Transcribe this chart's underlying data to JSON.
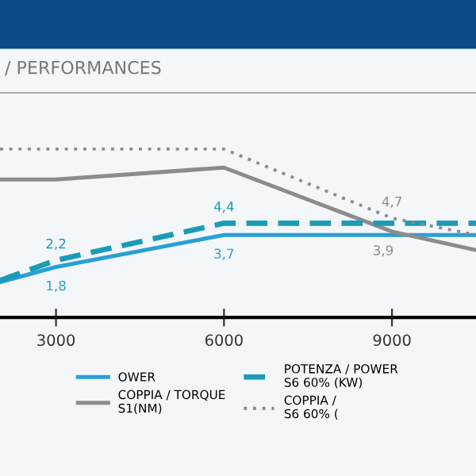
{
  "chart_data": {
    "type": "line",
    "title": "/ PERFORMANCES",
    "ylim": [
      -1.2,
      12
    ],
    "tick_labels": "x",
    "x": [
      2000,
      3000,
      6000,
      9000,
      10500
    ],
    "xlim": [
      2000,
      10500
    ],
    "xticks": [
      3000,
      6000,
      9000
    ],
    "series": [
      {
        "name": "OWER",
        "color": "#2a9fd6",
        "line_style": "solid",
        "values": [
          0.9,
          1.8,
          3.7,
          3.7,
          3.7
        ],
        "value_labels": [
          null,
          "1,8",
          "3,7",
          null,
          null
        ]
      },
      {
        "name": "COPPIA / TORQUE\nS1(NM)",
        "color": "#8c8c8c",
        "line_style": "solid",
        "values": [
          7.0,
          7.0,
          7.7,
          3.9,
          2.8
        ],
        "value_labels": [
          null,
          null,
          null,
          "3,9",
          null
        ]
      },
      {
        "name": "POTENZA / POWER\nS6 60% (KW)",
        "color": "#1b9bb8",
        "line_style": "dashed",
        "values": [
          1.0,
          2.2,
          4.4,
          4.4,
          4.4
        ],
        "value_labels": [
          null,
          "2,2",
          "4,4",
          null,
          null
        ]
      },
      {
        "name": "COPPIA /\nS6 60% (",
        "color": "#8c8c8c",
        "line_style": "dotted",
        "values": [
          8.8,
          8.8,
          8.8,
          4.7,
          3.7
        ],
        "value_labels": [
          null,
          null,
          null,
          "4,7",
          null
        ]
      }
    ],
    "legend": "bottom",
    "marker": "none"
  }
}
